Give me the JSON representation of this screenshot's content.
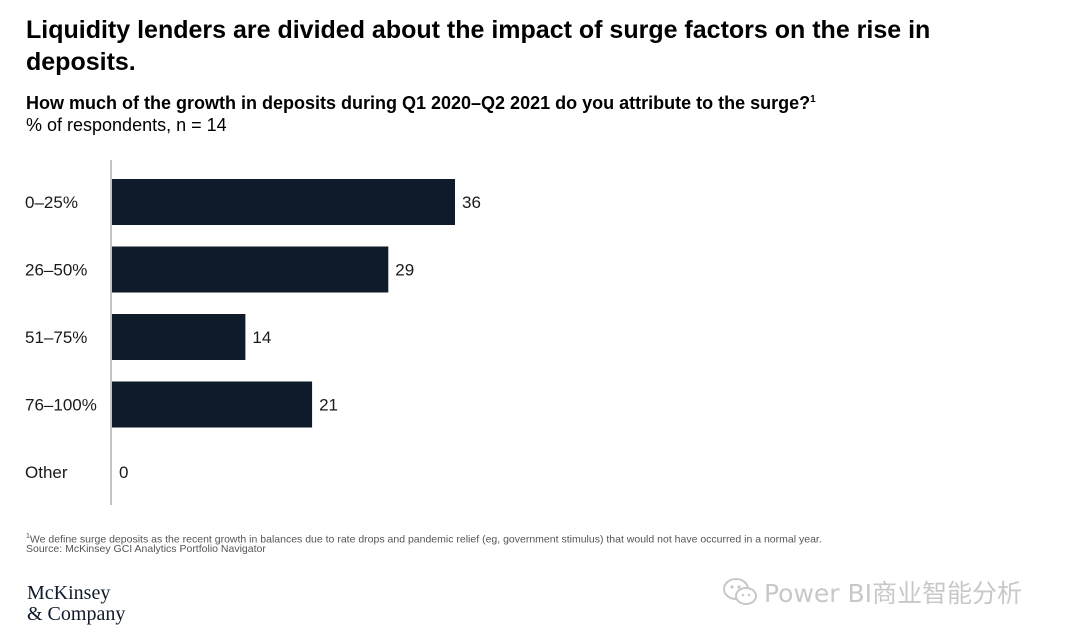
{
  "title": "Liquidity lenders are divided about the impact of surge factors on the rise in deposits.",
  "question": "How much of the growth in deposits during Q1 2020–Q2 2021 do you attribute to the surge?",
  "question_footnote_marker": "1",
  "subtitle": "% of respondents, n = 14",
  "footnote_marker": "1",
  "footnote": "We define surge deposits as the recent growth in balances due to rate drops and pandemic relief (eg, government stimulus) that would not have occurred in a normal year.",
  "source": "Source: McKinsey GCI Analytics Portfolio Navigator",
  "logo": {
    "line1": "McKinsey",
    "line2": "& Company"
  },
  "watermark": {
    "text": "Power BI商业智能分析",
    "icon": "wechat-icon"
  },
  "colors": {
    "bar": "#0f1a2a",
    "axis": "#8a8a8a"
  },
  "chart_data": {
    "type": "bar",
    "orientation": "horizontal",
    "categories": [
      "0–25%",
      "26–50%",
      "51–75%",
      "76–100%",
      "Other"
    ],
    "values": [
      36,
      29,
      14,
      21,
      0
    ],
    "value_labels": [
      "36",
      "29",
      "14",
      "21",
      "0"
    ],
    "xlim": [
      0,
      36
    ],
    "grid": false,
    "legend": "none"
  }
}
